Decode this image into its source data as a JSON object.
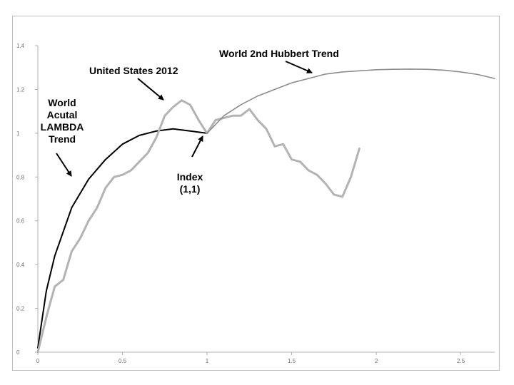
{
  "chart_data": {
    "type": "line",
    "title": "",
    "xlabel": "",
    "ylabel": "",
    "xlim": [
      0,
      2.7
    ],
    "ylim": [
      0,
      1.4
    ],
    "x_ticks": [
      "0",
      "0.5",
      "1",
      "1.5",
      "2",
      "2.5"
    ],
    "y_ticks": [
      "0",
      "0.2",
      "0.4",
      "0.6",
      "0.8",
      "1",
      "1.2",
      "1.4"
    ],
    "grid": false,
    "legend": "none",
    "series": [
      {
        "color": "#000000",
        "x": [
          0,
          0.05,
          0.1,
          0.2,
          0.3,
          0.4,
          0.5,
          0.6,
          0.7,
          0.8,
          0.9,
          1.0
        ],
        "y": [
          0.02,
          0.28,
          0.44,
          0.66,
          0.79,
          0.88,
          0.95,
          0.99,
          1.01,
          1.02,
          1.01,
          1.0
        ]
      },
      {
        "color": "#b3b3b3",
        "x": [
          0,
          0.05,
          0.1,
          0.15,
          0.2,
          0.25,
          0.3,
          0.35,
          0.4,
          0.45,
          0.5,
          0.55,
          0.6,
          0.65,
          0.7,
          0.75,
          0.8,
          0.85,
          0.9,
          0.95,
          1.0,
          1.05,
          1.1,
          1.15,
          1.2,
          1.25,
          1.3,
          1.35,
          1.4,
          1.45,
          1.5,
          1.55,
          1.6,
          1.65,
          1.7,
          1.75,
          1.8,
          1.85,
          1.9
        ],
        "y": [
          0.0,
          0.16,
          0.3,
          0.33,
          0.46,
          0.52,
          0.6,
          0.66,
          0.75,
          0.8,
          0.81,
          0.83,
          0.87,
          0.91,
          0.98,
          1.08,
          1.12,
          1.15,
          1.13,
          1.06,
          1.0,
          1.06,
          1.07,
          1.08,
          1.08,
          1.11,
          1.06,
          1.02,
          0.94,
          0.95,
          0.88,
          0.87,
          0.83,
          0.81,
          0.77,
          0.72,
          0.71,
          0.8,
          0.93
        ]
      },
      {
        "color": "#8c8c8c",
        "x": [
          1.0,
          1.1,
          1.2,
          1.3,
          1.4,
          1.5,
          1.6,
          1.7,
          1.8,
          1.9,
          2.0,
          2.1,
          2.2,
          2.3,
          2.4,
          2.5,
          2.6,
          2.7
        ],
        "y": [
          1.0,
          1.08,
          1.13,
          1.17,
          1.2,
          1.23,
          1.25,
          1.27,
          1.28,
          1.285,
          1.29,
          1.292,
          1.293,
          1.292,
          1.288,
          1.28,
          1.268,
          1.25
        ]
      }
    ],
    "annotations": [
      {
        "lines": [
          "World 2nd Hubbert Trend"
        ]
      },
      {
        "lines": [
          "United States 2012"
        ]
      },
      {
        "lines": [
          "World",
          "Acutal",
          "LAMBDA",
          "Trend"
        ]
      },
      {
        "lines": [
          "Index",
          "(1,1)"
        ]
      }
    ]
  }
}
